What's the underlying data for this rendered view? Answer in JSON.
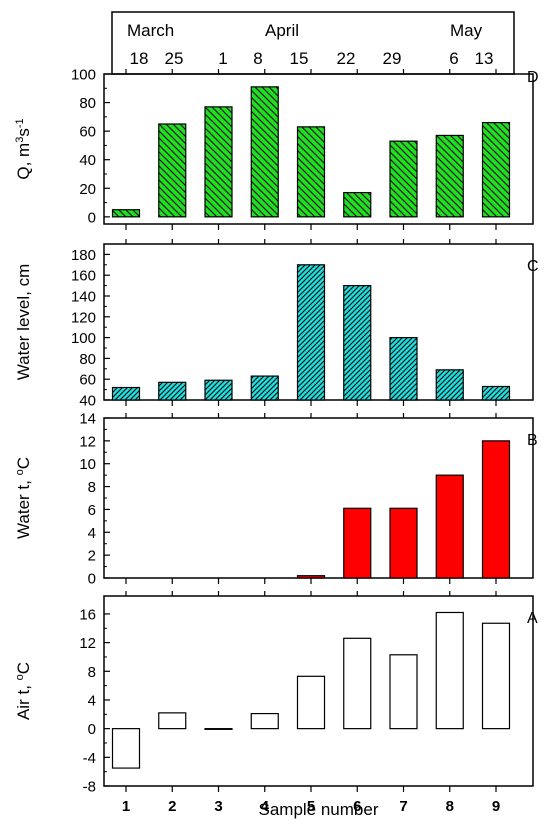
{
  "colors": {
    "panel_d": "#22dd22",
    "panel_c": "#22dddd",
    "panel_b": "#ff0000",
    "panel_a": "#ffffff",
    "outline": "#000000"
  },
  "dates_box": {
    "months": [
      "March",
      "April",
      "May"
    ],
    "days": [
      "18",
      "25",
      "1",
      "8",
      "15",
      "22",
      "29",
      "6",
      "13"
    ]
  },
  "chart_data": [
    {
      "type": "bar",
      "panel": "D",
      "ylabel_parts": [
        "Q, m",
        "3",
        "s",
        "-1"
      ],
      "categories": [
        1,
        2,
        3,
        4,
        5,
        6,
        7,
        8,
        9
      ],
      "values": [
        5,
        65,
        77,
        91,
        63,
        17,
        53,
        57,
        66
      ],
      "ylim": [
        -5,
        100
      ],
      "yticks": [
        0,
        20,
        40,
        60,
        80,
        100
      ],
      "fill": "hatch-green"
    },
    {
      "type": "bar",
      "panel": "C",
      "ylabel_parts": [
        "Water level, cm"
      ],
      "categories": [
        1,
        2,
        3,
        4,
        5,
        6,
        7,
        8,
        9
      ],
      "values": [
        52,
        57,
        59,
        63,
        170,
        150,
        100,
        69,
        53
      ],
      "ylim": [
        40,
        190
      ],
      "yticks": [
        40,
        60,
        80,
        100,
        120,
        140,
        160,
        180
      ],
      "fill": "hatch-cyan"
    },
    {
      "type": "bar",
      "panel": "B",
      "ylabel_parts": [
        "Water t, ",
        "o",
        "C"
      ],
      "categories": [
        1,
        2,
        3,
        4,
        5,
        6,
        7,
        8,
        9
      ],
      "values": [
        0,
        0,
        0,
        0,
        0.2,
        6.1,
        6.1,
        9,
        12
      ],
      "ylim": [
        0,
        14
      ],
      "yticks": [
        0,
        2,
        4,
        6,
        8,
        10,
        12,
        14
      ],
      "fill": "solid-red"
    },
    {
      "type": "bar",
      "panel": "A",
      "ylabel_parts": [
        "Air t, ",
        "o",
        "C"
      ],
      "categories": [
        1,
        2,
        3,
        4,
        5,
        6,
        7,
        8,
        9
      ],
      "values": [
        -5.5,
        2.2,
        -0.1,
        2.1,
        7.3,
        12.6,
        10.3,
        16.2,
        14.7
      ],
      "ylim": [
        -8,
        18.5
      ],
      "yticks": [
        -8,
        -4,
        0,
        4,
        8,
        12,
        16
      ],
      "fill": "white",
      "xlabel": "Sample number",
      "xticklabels": [
        "1",
        "2",
        "3",
        "4",
        "5",
        "6",
        "7",
        "8",
        "9"
      ]
    }
  ]
}
